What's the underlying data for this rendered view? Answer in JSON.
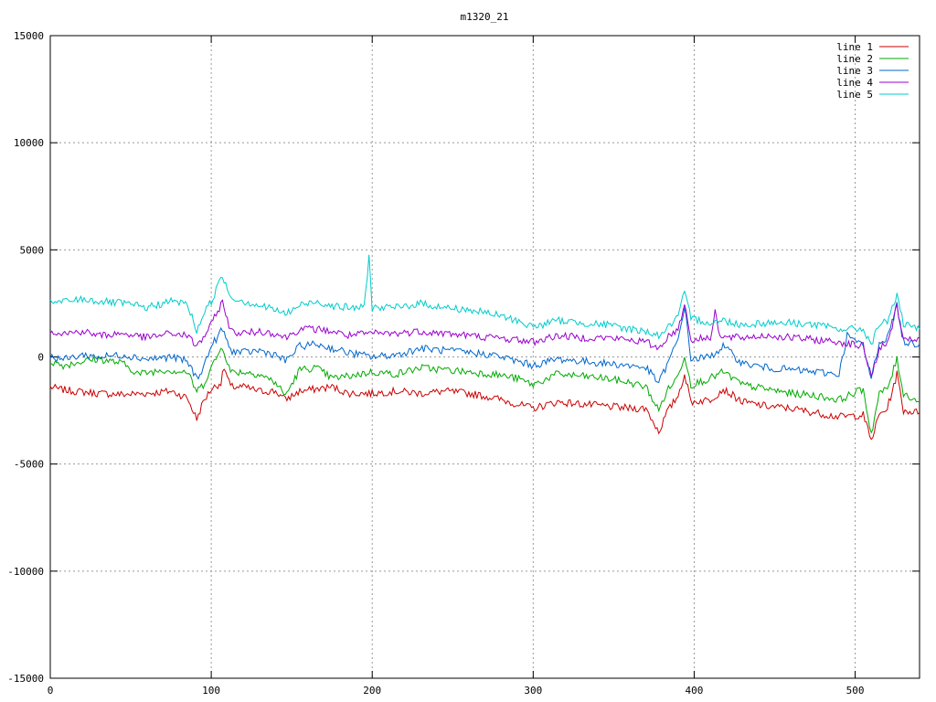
{
  "chart_data": {
    "type": "line",
    "title": "m1320_21",
    "xlabel": "",
    "ylabel": "",
    "xlim": [
      0,
      540
    ],
    "ylim": [
      -15000,
      15000
    ],
    "xticks": [
      0,
      100,
      200,
      300,
      400,
      500
    ],
    "yticks": [
      -15000,
      -10000,
      -5000,
      0,
      5000,
      10000,
      15000
    ],
    "grid": true,
    "legend_position": "top-right",
    "series": [
      {
        "name": "line 1",
        "color": "#cc0000",
        "points": [
          [
            0,
            -1400
          ],
          [
            5,
            -1500
          ],
          [
            15,
            -1600
          ],
          [
            30,
            -1700
          ],
          [
            45,
            -1750
          ],
          [
            60,
            -1700
          ],
          [
            75,
            -1600
          ],
          [
            85,
            -1900
          ],
          [
            91,
            -2900
          ],
          [
            95,
            -2100
          ],
          [
            100,
            -1500
          ],
          [
            106,
            -1200
          ],
          [
            108,
            -500
          ],
          [
            112,
            -1400
          ],
          [
            120,
            -1400
          ],
          [
            130,
            -1600
          ],
          [
            140,
            -1600
          ],
          [
            146,
            -2000
          ],
          [
            155,
            -1600
          ],
          [
            165,
            -1500
          ],
          [
            175,
            -1400
          ],
          [
            185,
            -1700
          ],
          [
            200,
            -1700
          ],
          [
            215,
            -1600
          ],
          [
            230,
            -1700
          ],
          [
            245,
            -1600
          ],
          [
            260,
            -1700
          ],
          [
            275,
            -1900
          ],
          [
            290,
            -2200
          ],
          [
            300,
            -2400
          ],
          [
            315,
            -2100
          ],
          [
            330,
            -2200
          ],
          [
            345,
            -2300
          ],
          [
            360,
            -2400
          ],
          [
            370,
            -2400
          ],
          [
            378,
            -3500
          ],
          [
            383,
            -2600
          ],
          [
            390,
            -1800
          ],
          [
            394,
            -800
          ],
          [
            398,
            -2100
          ],
          [
            410,
            -2000
          ],
          [
            418,
            -1500
          ],
          [
            430,
            -2100
          ],
          [
            445,
            -2300
          ],
          [
            460,
            -2400
          ],
          [
            475,
            -2600
          ],
          [
            490,
            -2800
          ],
          [
            505,
            -2700
          ],
          [
            510,
            -3900
          ],
          [
            515,
            -2700
          ],
          [
            520,
            -2400
          ],
          [
            526,
            -800
          ],
          [
            530,
            -2500
          ],
          [
            540,
            -2600
          ]
        ]
      },
      {
        "name": "line 2",
        "color": "#00aa00",
        "points": [
          [
            0,
            -200
          ],
          [
            8,
            -400
          ],
          [
            20,
            -200
          ],
          [
            30,
            -100
          ],
          [
            45,
            -300
          ],
          [
            55,
            -800
          ],
          [
            70,
            -600
          ],
          [
            85,
            -700
          ],
          [
            91,
            -1600
          ],
          [
            95,
            -1300
          ],
          [
            100,
            -500
          ],
          [
            107,
            500
          ],
          [
            112,
            -700
          ],
          [
            120,
            -700
          ],
          [
            130,
            -800
          ],
          [
            140,
            -1200
          ],
          [
            146,
            -1800
          ],
          [
            155,
            -600
          ],
          [
            165,
            -500
          ],
          [
            175,
            -1000
          ],
          [
            185,
            -900
          ],
          [
            200,
            -700
          ],
          [
            215,
            -800
          ],
          [
            230,
            -500
          ],
          [
            245,
            -600
          ],
          [
            260,
            -700
          ],
          [
            275,
            -800
          ],
          [
            290,
            -1000
          ],
          [
            300,
            -1300
          ],
          [
            315,
            -800
          ],
          [
            330,
            -900
          ],
          [
            345,
            -1000
          ],
          [
            360,
            -1200
          ],
          [
            370,
            -1400
          ],
          [
            378,
            -2500
          ],
          [
            383,
            -1600
          ],
          [
            390,
            -900
          ],
          [
            394,
            100
          ],
          [
            398,
            -1300
          ],
          [
            410,
            -1000
          ],
          [
            418,
            -700
          ],
          [
            430,
            -1300
          ],
          [
            445,
            -1500
          ],
          [
            460,
            -1700
          ],
          [
            475,
            -1800
          ],
          [
            490,
            -2000
          ],
          [
            505,
            -1500
          ],
          [
            510,
            -3600
          ],
          [
            515,
            -1700
          ],
          [
            520,
            -1500
          ],
          [
            526,
            -100
          ],
          [
            530,
            -1700
          ],
          [
            540,
            -2100
          ]
        ]
      },
      {
        "name": "line 3",
        "color": "#0066cc",
        "points": [
          [
            0,
            0
          ],
          [
            10,
            -100
          ],
          [
            20,
            100
          ],
          [
            30,
            0
          ],
          [
            45,
            100
          ],
          [
            60,
            -100
          ],
          [
            75,
            0
          ],
          [
            85,
            -200
          ],
          [
            91,
            -1000
          ],
          [
            95,
            -500
          ],
          [
            100,
            500
          ],
          [
            107,
            1300
          ],
          [
            112,
            300
          ],
          [
            120,
            200
          ],
          [
            130,
            300
          ],
          [
            140,
            100
          ],
          [
            146,
            -200
          ],
          [
            155,
            500
          ],
          [
            165,
            600
          ],
          [
            175,
            400
          ],
          [
            185,
            200
          ],
          [
            200,
            0
          ],
          [
            215,
            100
          ],
          [
            230,
            400
          ],
          [
            245,
            300
          ],
          [
            260,
            200
          ],
          [
            275,
            100
          ],
          [
            290,
            -200
          ],
          [
            300,
            -400
          ],
          [
            315,
            -100
          ],
          [
            330,
            -200
          ],
          [
            345,
            -300
          ],
          [
            360,
            -400
          ],
          [
            370,
            -500
          ],
          [
            378,
            -1200
          ],
          [
            383,
            -400
          ],
          [
            390,
            800
          ],
          [
            394,
            2400
          ],
          [
            398,
            -100
          ],
          [
            410,
            0
          ],
          [
            418,
            500
          ],
          [
            430,
            -300
          ],
          [
            445,
            -500
          ],
          [
            460,
            -600
          ],
          [
            475,
            -700
          ],
          [
            490,
            -800
          ],
          [
            495,
            1000
          ],
          [
            505,
            500
          ],
          [
            510,
            -1000
          ],
          [
            515,
            700
          ],
          [
            520,
            900
          ],
          [
            526,
            2400
          ],
          [
            530,
            700
          ],
          [
            540,
            600
          ]
        ]
      },
      {
        "name": "line 4",
        "color": "#9900cc",
        "points": [
          [
            0,
            1200
          ],
          [
            10,
            1100
          ],
          [
            20,
            1200
          ],
          [
            30,
            1000
          ],
          [
            45,
            1100
          ],
          [
            60,
            900
          ],
          [
            75,
            1100
          ],
          [
            85,
            1000
          ],
          [
            91,
            500
          ],
          [
            95,
            900
          ],
          [
            100,
            1500
          ],
          [
            107,
            2600
          ],
          [
            112,
            1200
          ],
          [
            120,
            1100
          ],
          [
            130,
            1200
          ],
          [
            140,
            1100
          ],
          [
            146,
            900
          ],
          [
            155,
            1300
          ],
          [
            165,
            1300
          ],
          [
            175,
            1200
          ],
          [
            185,
            1000
          ],
          [
            200,
            1100
          ],
          [
            215,
            1100
          ],
          [
            230,
            1200
          ],
          [
            245,
            1100
          ],
          [
            260,
            1000
          ],
          [
            275,
            900
          ],
          [
            290,
            800
          ],
          [
            300,
            700
          ],
          [
            315,
            1000
          ],
          [
            330,
            900
          ],
          [
            345,
            900
          ],
          [
            360,
            800
          ],
          [
            370,
            700
          ],
          [
            378,
            400
          ],
          [
            383,
            900
          ],
          [
            390,
            1300
          ],
          [
            394,
            2500
          ],
          [
            398,
            800
          ],
          [
            410,
            900
          ],
          [
            413,
            2200
          ],
          [
            416,
            900
          ],
          [
            430,
            900
          ],
          [
            445,
            1000
          ],
          [
            460,
            900
          ],
          [
            475,
            800
          ],
          [
            490,
            700
          ],
          [
            505,
            500
          ],
          [
            510,
            -900
          ],
          [
            515,
            400
          ],
          [
            520,
            600
          ],
          [
            526,
            2400
          ],
          [
            530,
            700
          ],
          [
            540,
            900
          ]
        ]
      },
      {
        "name": "line 5",
        "color": "#00cccc",
        "points": [
          [
            0,
            2500
          ],
          [
            10,
            2600
          ],
          [
            20,
            2700
          ],
          [
            30,
            2600
          ],
          [
            45,
            2500
          ],
          [
            60,
            2300
          ],
          [
            75,
            2600
          ],
          [
            85,
            2500
          ],
          [
            91,
            1200
          ],
          [
            95,
            2000
          ],
          [
            100,
            2600
          ],
          [
            107,
            3800
          ],
          [
            112,
            2800
          ],
          [
            120,
            2600
          ],
          [
            130,
            2400
          ],
          [
            140,
            2200
          ],
          [
            146,
            2000
          ],
          [
            155,
            2400
          ],
          [
            165,
            2600
          ],
          [
            175,
            2400
          ],
          [
            185,
            2300
          ],
          [
            195,
            2300
          ],
          [
            198,
            4700
          ],
          [
            200,
            2300
          ],
          [
            215,
            2300
          ],
          [
            230,
            2500
          ],
          [
            245,
            2300
          ],
          [
            260,
            2200
          ],
          [
            275,
            2000
          ],
          [
            290,
            1700
          ],
          [
            300,
            1400
          ],
          [
            315,
            1700
          ],
          [
            330,
            1600
          ],
          [
            345,
            1500
          ],
          [
            360,
            1300
          ],
          [
            370,
            1200
          ],
          [
            378,
            1000
          ],
          [
            383,
            1300
          ],
          [
            390,
            1900
          ],
          [
            394,
            3000
          ],
          [
            398,
            1800
          ],
          [
            410,
            1600
          ],
          [
            418,
            1700
          ],
          [
            430,
            1500
          ],
          [
            445,
            1600
          ],
          [
            460,
            1600
          ],
          [
            475,
            1500
          ],
          [
            490,
            1300
          ],
          [
            505,
            1300
          ],
          [
            510,
            600
          ],
          [
            515,
            1500
          ],
          [
            520,
            1700
          ],
          [
            526,
            2900
          ],
          [
            530,
            1500
          ],
          [
            540,
            1300
          ]
        ]
      }
    ]
  }
}
